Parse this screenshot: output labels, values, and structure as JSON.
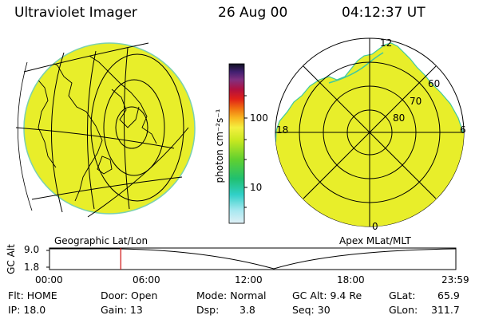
{
  "header": {
    "instrument": "Ultraviolet Imager",
    "date": "26 Aug 00",
    "time": "04:12:37 UT"
  },
  "left_map": {
    "caption": "Geographic Lat/Lon",
    "fill_color": "#e8ee2a"
  },
  "colorbar": {
    "label": "photon cm⁻²s⁻¹",
    "ticks": [
      "100",
      "10"
    ]
  },
  "right_map": {
    "caption": "Apex MLat/MLT",
    "mlt_labels": [
      "12",
      "18",
      "6",
      "0"
    ],
    "mlat_labels": [
      "60",
      "70",
      "80"
    ]
  },
  "timeline": {
    "y_label": "GC Alt",
    "y_ticks": [
      "9.0",
      "1.8"
    ],
    "x_ticks": [
      "00:00",
      "06:00",
      "12:00",
      "18:00",
      "23:59"
    ],
    "marker_time_hours": 4.21,
    "marker_color": "#d01010"
  },
  "info": {
    "flt": "Flt: HOME",
    "ip": "IP: 18.0",
    "door": "Door: Open",
    "gain": "Gain: 13",
    "mode": "Mode: Normal",
    "dsp_label": "Dsp:",
    "dsp_value": "3.8",
    "gc_alt": "GC Alt: 9.4 Re",
    "seq": "Seq: 30",
    "glat_label": "GLat:",
    "glat_value": "65.9",
    "glon_label": "GLon:",
    "glon_value": "311.7"
  }
}
